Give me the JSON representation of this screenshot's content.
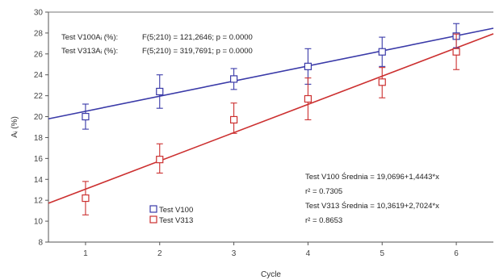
{
  "chart_data": {
    "type": "scatter",
    "title": "",
    "xlabel": "Cycle",
    "ylabel": "Aᵢ (%)",
    "xlim": [
      0.5,
      6.5
    ],
    "ylim": [
      8,
      30
    ],
    "x_ticks": [
      "1",
      "2",
      "3",
      "4",
      "5",
      "6"
    ],
    "y_ticks": [
      "8",
      "10",
      "12",
      "14",
      "16",
      "18",
      "20",
      "22",
      "24",
      "26",
      "28",
      "30"
    ],
    "grid": false,
    "series": [
      {
        "name": "Test V100",
        "color": "#3a3aa8",
        "x": [
          1,
          2,
          3,
          4,
          5,
          6
        ],
        "mean": [
          20.0,
          22.4,
          23.6,
          24.8,
          26.2,
          27.7
        ],
        "err_low": [
          18.8,
          20.8,
          22.6,
          23.1,
          24.8,
          26.6
        ],
        "err_high": [
          21.2,
          24.0,
          24.6,
          26.5,
          27.6,
          28.9
        ],
        "fit": {
          "intercept": 19.0696,
          "slope": 1.4443
        },
        "fit_label": "Test V100 Średnia = 19,0696+1,4443*x",
        "r2_label": "r² = 0.7305",
        "anova_label": "Test V100Aᵢ (%):",
        "anova_value": "F(5;210) = 121,2646; p = 0.0000"
      },
      {
        "name": "Test V313",
        "color": "#cc3030",
        "x": [
          1,
          2,
          3,
          4,
          5,
          6
        ],
        "mean": [
          12.2,
          15.9,
          19.7,
          21.7,
          23.3,
          26.2
        ],
        "err_low": [
          10.6,
          14.6,
          18.4,
          19.7,
          21.8,
          24.5
        ],
        "err_high": [
          13.8,
          17.4,
          21.3,
          23.7,
          24.7,
          27.9
        ],
        "fit": {
          "intercept": 10.3619,
          "slope": 2.7024
        },
        "fit_label": "Test V313 Średnia = 10,3619+2,7024*x",
        "r2_label": "r² = 0.8653",
        "anova_label": "Test V313Aᵢ (%):",
        "anova_value": "F(5;210) = 319,7691; p = 0.0000"
      }
    ]
  }
}
